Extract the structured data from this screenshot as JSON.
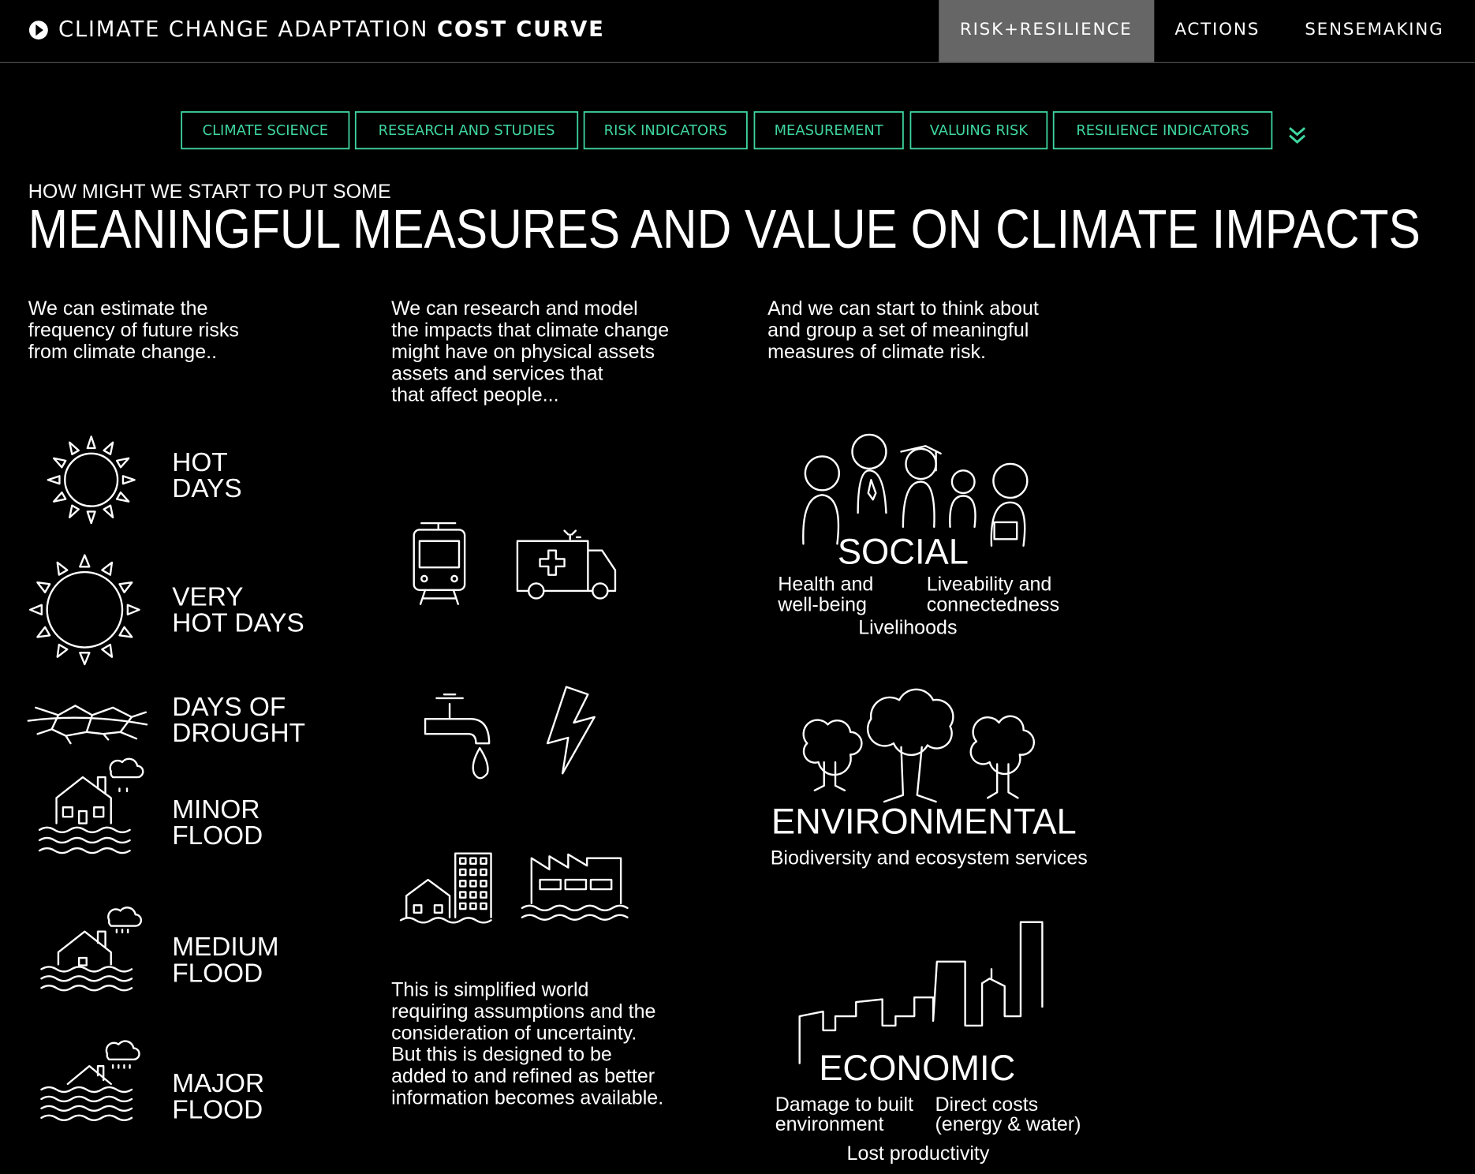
{
  "header": {
    "title_prefix": "CLIMATE CHANGE ADAPTATION",
    "title_bold": "COST CURVE",
    "nav": [
      "RISK+RESILIENCE",
      "ACTIONS",
      "SENSEMAKING"
    ]
  },
  "tabs": [
    "CLIMATE SCIENCE",
    "RESEARCH AND STUDIES",
    "RISK INDICATORS",
    "MEASUREMENT",
    "VALUING RISK",
    "RESILIENCE INDICATORS"
  ],
  "heading": {
    "kicker": "HOW MIGHT WE START TO PUT SOME",
    "title": "MEANINGFUL MEASURES AND VALUE ON CLIMATE IMPACTS"
  },
  "columns": [
    {
      "lines": [
        "We can estimate the",
        "frequency of future risks",
        "from climate change.."
      ]
    },
    {
      "lines": [
        "We can research and model",
        "the impacts that climate change",
        "might have on physical assets",
        "assets and services that",
        "that affect people..."
      ]
    },
    {
      "lines": [
        "And we can start to think about",
        "and group a set of meaningful",
        "measures of climate risk."
      ]
    }
  ],
  "risks": [
    {
      "lines": [
        "HOT",
        "DAYS"
      ]
    },
    {
      "lines": [
        "VERY",
        "HOT DAYS"
      ]
    },
    {
      "lines": [
        "DAYS OF",
        "DROUGHT"
      ]
    },
    {
      "lines": [
        "MINOR",
        "FLOOD"
      ]
    },
    {
      "lines": [
        "MEDIUM",
        "FLOOD"
      ]
    },
    {
      "lines": [
        "MAJOR",
        "FLOOD"
      ]
    }
  ],
  "note": {
    "lines": [
      "This is simplified world",
      "requiring assumptions and the",
      "consideration of uncertainty.",
      "But this is designed to be",
      "added to and refined as better",
      "information becomes available."
    ]
  },
  "measures": {
    "social": {
      "title": "SOCIAL",
      "health": [
        "Health and",
        "well-being"
      ],
      "liveability": [
        "Liveability and",
        "connectedness"
      ],
      "livelihoods": "Livelihoods"
    },
    "environmental": {
      "title": "ENVIRONMENTAL",
      "sub": "Biodiversity and ecosystem services"
    },
    "economic": {
      "title": "ECONOMIC",
      "damage": [
        "Damage to built",
        "environment"
      ],
      "direct": [
        "Direct costs",
        "(energy & water)"
      ],
      "lost": "Lost productivity"
    }
  }
}
